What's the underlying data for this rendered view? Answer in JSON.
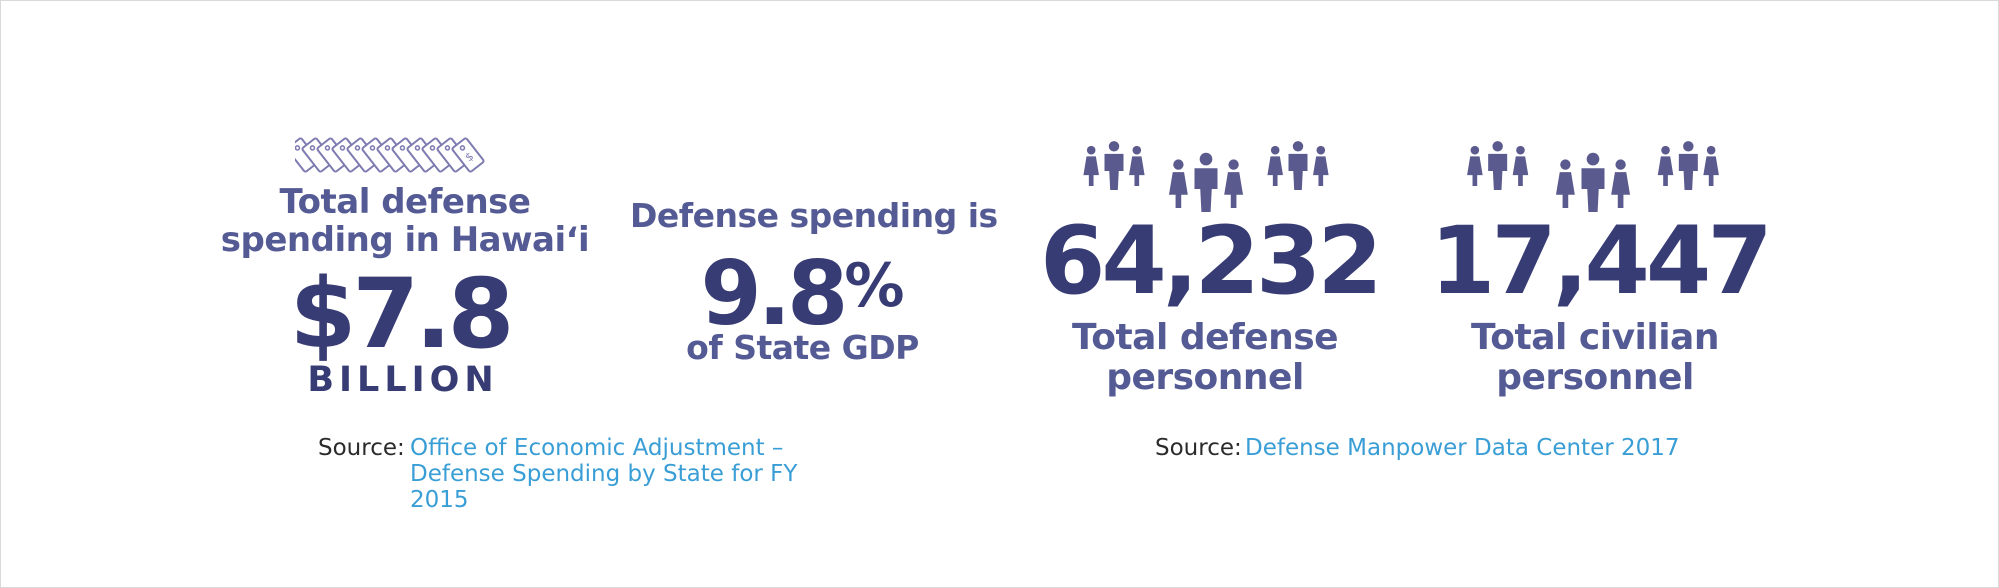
{
  "panel_spending": {
    "title_line1": "Total defense",
    "title_line2": "spending in Hawai‘i",
    "amount": "$7.8",
    "unit": "BILLION",
    "icon": "dollar-tags-icon"
  },
  "panel_gdp": {
    "prefix": "Defense spending is",
    "value": "9.8",
    "percent_sign": "%",
    "suffix": "of State GDP"
  },
  "panel_defense_personnel": {
    "value": "64,232",
    "label_line1": "Total defense",
    "label_line2": "personnel",
    "icon": "people-group-icon"
  },
  "panel_civilian_personnel": {
    "value": "17,447",
    "label_line1": "Total civilian",
    "label_line2": "personnel",
    "icon": "people-group-icon"
  },
  "source_left": {
    "label": "Source:",
    "line1": "Office of Economic Adjustment –",
    "line2": "Defense Spending by State for FY 2015"
  },
  "source_right": {
    "label": "Source:",
    "line1": "Defense Manpower Data Center 2017"
  },
  "colors": {
    "dark_navy": "#383c74",
    "label_purple": "#545a94",
    "icon_purple": "#5b5a8e",
    "link_blue": "#3a9ed6"
  }
}
